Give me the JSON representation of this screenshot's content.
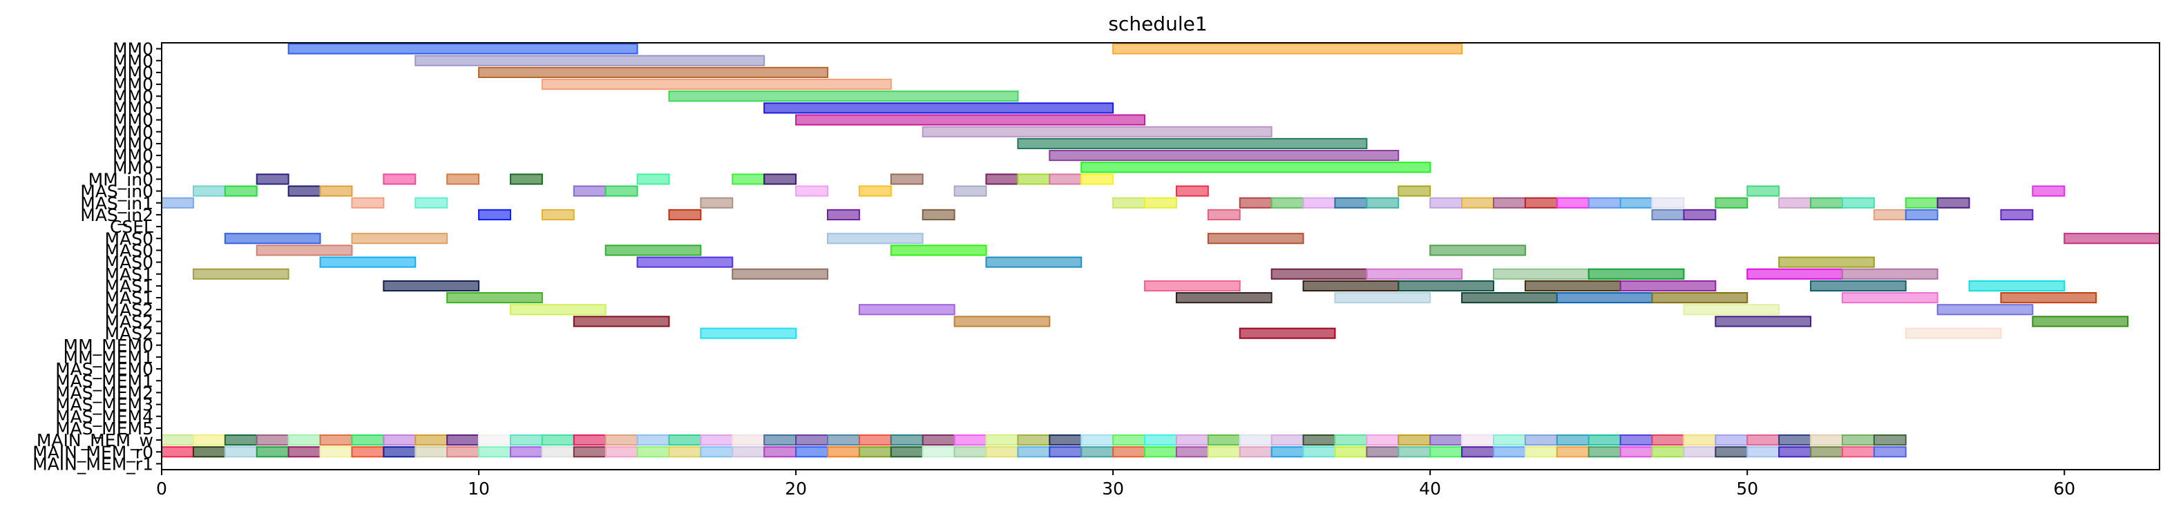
{
  "chart_data": {
    "type": "gantt",
    "title": "schedule1",
    "xlabel": "",
    "ylabel": "",
    "xlim": [
      0,
      63
    ],
    "x_ticks": [
      0,
      10,
      20,
      30,
      40,
      50,
      60
    ],
    "grid": false,
    "legend": "none",
    "rows": [
      "MM0",
      "MM0",
      "MM0",
      "MM0",
      "MM0",
      "MM0",
      "MM0",
      "MM0",
      "MM0",
      "MM0",
      "MM0",
      "MM_in0",
      "MAS_in0",
      "MAS_in1",
      "MAS_in2",
      "CSEL",
      "MAS0",
      "MAS0",
      "MAS0",
      "MAS1",
      "MAS1",
      "MAS1",
      "MAS2",
      "MAS2",
      "MAS2",
      "MM_MEM0",
      "MM_MEM1",
      "MAS_MEM0",
      "MAS_MEM1",
      "MAS_MEM2",
      "MAS_MEM3",
      "MAS_MEM4",
      "MAS_MEM5",
      "MAIN_MEM_w",
      "MAIN_MEM_r0",
      "MAIN_MEM_r1"
    ],
    "bars": [
      {
        "row": 0,
        "start": 4,
        "end": 15,
        "color": "#2d5fec"
      },
      {
        "row": 0,
        "start": 30,
        "end": 41,
        "color": "#fba830"
      },
      {
        "row": 1,
        "start": 8,
        "end": 19,
        "color": "#9a96c8"
      },
      {
        "row": 2,
        "start": 10,
        "end": 21,
        "color": "#b86630"
      },
      {
        "row": 3,
        "start": 12,
        "end": 23,
        "color": "#f2a078"
      },
      {
        "row": 4,
        "start": 16,
        "end": 27,
        "color": "#3fd45c"
      },
      {
        "row": 5,
        "start": 19,
        "end": 30,
        "color": "#1c1adf"
      },
      {
        "row": 6,
        "start": 20,
        "end": 31,
        "color": "#c41a9c"
      },
      {
        "row": 7,
        "start": 24,
        "end": 35,
        "color": "#b896c4"
      },
      {
        "row": 8,
        "start": 27,
        "end": 38,
        "color": "#1e7a58"
      },
      {
        "row": 9,
        "start": 28,
        "end": 39,
        "color": "#8a3c9c"
      },
      {
        "row": 10,
        "start": 29,
        "end": 40,
        "color": "#24f224"
      },
      {
        "row": 11,
        "start": 3,
        "end": 4,
        "color": "#2c2080"
      },
      {
        "row": 11,
        "start": 7,
        "end": 8,
        "color": "#f24a9c"
      },
      {
        "row": 11,
        "start": 9,
        "end": 10,
        "color": "#d47a40"
      },
      {
        "row": 11,
        "start": 11,
        "end": 12,
        "color": "#1a6a20"
      },
      {
        "row": 11,
        "start": 15,
        "end": 16,
        "color": "#40f2a0"
      },
      {
        "row": 11,
        "start": 18,
        "end": 19,
        "color": "#3ef03a"
      },
      {
        "row": 11,
        "start": 19,
        "end": 20,
        "color": "#3a1a6c"
      },
      {
        "row": 11,
        "start": 23,
        "end": 24,
        "color": "#9a6a58"
      },
      {
        "row": 11,
        "start": 26,
        "end": 27,
        "color": "#7a2060"
      },
      {
        "row": 11,
        "start": 27,
        "end": 28,
        "color": "#a4d830"
      },
      {
        "row": 11,
        "start": 28,
        "end": 29,
        "color": "#d878a0"
      },
      {
        "row": 11,
        "start": 29,
        "end": 30,
        "color": "#fcf020"
      },
      {
        "row": 12,
        "start": 1,
        "end": 2,
        "color": "#70d0d0"
      },
      {
        "row": 12,
        "start": 2,
        "end": 3,
        "color": "#2ad840"
      },
      {
        "row": 12,
        "start": 4,
        "end": 5,
        "color": "#241c70"
      },
      {
        "row": 12,
        "start": 5,
        "end": 6,
        "color": "#e0a038"
      },
      {
        "row": 12,
        "start": 13,
        "end": 14,
        "color": "#8a6ad0"
      },
      {
        "row": 12,
        "start": 14,
        "end": 15,
        "color": "#34d45c"
      },
      {
        "row": 12,
        "start": 20,
        "end": 21,
        "color": "#f0a0f0"
      },
      {
        "row": 12,
        "start": 22,
        "end": 23,
        "color": "#f8c020"
      },
      {
        "row": 12,
        "start": 25,
        "end": 26,
        "color": "#a8a8c8"
      },
      {
        "row": 12,
        "start": 32,
        "end": 33,
        "color": "#e8304c"
      },
      {
        "row": 12,
        "start": 39,
        "end": 40,
        "color": "#a8a820"
      },
      {
        "row": 12,
        "start": 50,
        "end": 51,
        "color": "#40d880"
      },
      {
        "row": 12,
        "start": 59,
        "end": 60,
        "color": "#e030e0"
      },
      {
        "row": 13,
        "start": 0,
        "end": 1,
        "color": "#7aa8e8"
      },
      {
        "row": 13,
        "start": 6,
        "end": 7,
        "color": "#f0a080"
      },
      {
        "row": 13,
        "start": 8,
        "end": 9,
        "color": "#60f0d0"
      },
      {
        "row": 13,
        "start": 17,
        "end": 18,
        "color": "#b09080"
      },
      {
        "row": 13,
        "start": 30,
        "end": 31,
        "color": "#c8e860"
      },
      {
        "row": 13,
        "start": 31,
        "end": 32,
        "color": "#e8f030"
      },
      {
        "row": 13,
        "start": 34,
        "end": 35,
        "color": "#b84040"
      },
      {
        "row": 13,
        "start": 35,
        "end": 36,
        "color": "#60c060"
      },
      {
        "row": 13,
        "start": 36,
        "end": 37,
        "color": "#e0a0f0"
      },
      {
        "row": 13,
        "start": 37,
        "end": 38,
        "color": "#2070a0"
      },
      {
        "row": 13,
        "start": 38,
        "end": 39,
        "color": "#40b0a0"
      },
      {
        "row": 13,
        "start": 40,
        "end": 41,
        "color": "#c0a0e0"
      },
      {
        "row": 13,
        "start": 41,
        "end": 42,
        "color": "#e0b040"
      },
      {
        "row": 13,
        "start": 42,
        "end": 43,
        "color": "#a05080"
      },
      {
        "row": 13,
        "start": 43,
        "end": 44,
        "color": "#c02020"
      },
      {
        "row": 13,
        "start": 44,
        "end": 45,
        "color": "#f030f0"
      },
      {
        "row": 13,
        "start": 45,
        "end": 46,
        "color": "#6090f0"
      },
      {
        "row": 13,
        "start": 46,
        "end": 47,
        "color": "#40a0e0"
      },
      {
        "row": 13,
        "start": 47,
        "end": 48,
        "color": "#e0e0f0"
      },
      {
        "row": 13,
        "start": 49,
        "end": 50,
        "color": "#30c040"
      },
      {
        "row": 13,
        "start": 51,
        "end": 52,
        "color": "#d0a0d0"
      },
      {
        "row": 13,
        "start": 52,
        "end": 53,
        "color": "#40c060"
      },
      {
        "row": 13,
        "start": 53,
        "end": 54,
        "color": "#40e0b0"
      },
      {
        "row": 13,
        "start": 55,
        "end": 56,
        "color": "#40e040"
      },
      {
        "row": 13,
        "start": 56,
        "end": 57,
        "color": "#502080"
      },
      {
        "row": 14,
        "start": 10,
        "end": 11,
        "color": "#1020f0"
      },
      {
        "row": 14,
        "start": 12,
        "end": 13,
        "color": "#e0b030"
      },
      {
        "row": 14,
        "start": 16,
        "end": 17,
        "color": "#c03010"
      },
      {
        "row": 14,
        "start": 21,
        "end": 22,
        "color": "#7020a0"
      },
      {
        "row": 14,
        "start": 24,
        "end": 25,
        "color": "#806040"
      },
      {
        "row": 14,
        "start": 33,
        "end": 34,
        "color": "#e06080"
      },
      {
        "row": 14,
        "start": 47,
        "end": 48,
        "color": "#6080c0"
      },
      {
        "row": 14,
        "start": 48,
        "end": 49,
        "color": "#6020a0"
      },
      {
        "row": 14,
        "start": 54,
        "end": 55,
        "color": "#e0a080"
      },
      {
        "row": 14,
        "start": 55,
        "end": 56,
        "color": "#4070e0"
      },
      {
        "row": 14,
        "start": 58,
        "end": 59,
        "color": "#6020c0"
      },
      {
        "row": 16,
        "start": 2,
        "end": 5,
        "color": "#3060e0"
      },
      {
        "row": 16,
        "start": 6,
        "end": 9,
        "color": "#e0a060"
      },
      {
        "row": 16,
        "start": 21,
        "end": 24,
        "color": "#a0c0e0"
      },
      {
        "row": 16,
        "start": 33,
        "end": 36,
        "color": "#b05030"
      },
      {
        "row": 16,
        "start": 60,
        "end": 63,
        "color": "#c03080"
      },
      {
        "row": 17,
        "start": 3,
        "end": 6,
        "color": "#d08070"
      },
      {
        "row": 17,
        "start": 14,
        "end": 17,
        "color": "#30b030"
      },
      {
        "row": 17,
        "start": 23,
        "end": 26,
        "color": "#30f010"
      },
      {
        "row": 17,
        "start": 40,
        "end": 43,
        "color": "#50a050"
      },
      {
        "row": 18,
        "start": 5,
        "end": 8,
        "color": "#10b0f0"
      },
      {
        "row": 18,
        "start": 15,
        "end": 18,
        "color": "#5030e0"
      },
      {
        "row": 18,
        "start": 26,
        "end": 29,
        "color": "#2090c0"
      },
      {
        "row": 18,
        "start": 51,
        "end": 54,
        "color": "#a0a020"
      },
      {
        "row": 19,
        "start": 1,
        "end": 4,
        "color": "#a0a040"
      },
      {
        "row": 19,
        "start": 18,
        "end": 21,
        "color": "#907060"
      },
      {
        "row": 19,
        "start": 35,
        "end": 38,
        "color": "#702040"
      },
      {
        "row": 19,
        "start": 38,
        "end": 41,
        "color": "#d070d0"
      },
      {
        "row": 19,
        "start": 42,
        "end": 45,
        "color": "#90c090"
      },
      {
        "row": 19,
        "start": 45,
        "end": 48,
        "color": "#10a030"
      },
      {
        "row": 19,
        "start": 50,
        "end": 53,
        "color": "#e010e0"
      },
      {
        "row": 19,
        "start": 53,
        "end": 56,
        "color": "#b070a0"
      },
      {
        "row": 20,
        "start": 7,
        "end": 10,
        "color": "#102050"
      },
      {
        "row": 20,
        "start": 31,
        "end": 34,
        "color": "#f06090"
      },
      {
        "row": 20,
        "start": 36,
        "end": 39,
        "color": "#302010"
      },
      {
        "row": 20,
        "start": 39,
        "end": 42,
        "color": "#105040"
      },
      {
        "row": 20,
        "start": 43,
        "end": 46,
        "color": "#403010"
      },
      {
        "row": 20,
        "start": 46,
        "end": 49,
        "color": "#9020a0"
      },
      {
        "row": 20,
        "start": 52,
        "end": 55,
        "color": "#106070"
      },
      {
        "row": 20,
        "start": 57,
        "end": 60,
        "color": "#10e0e0"
      },
      {
        "row": 21,
        "start": 9,
        "end": 12,
        "color": "#40b020"
      },
      {
        "row": 21,
        "start": 32,
        "end": 35,
        "color": "#302020"
      },
      {
        "row": 21,
        "start": 37,
        "end": 40,
        "color": "#b0d0e0"
      },
      {
        "row": 21,
        "start": 41,
        "end": 44,
        "color": "#104030"
      },
      {
        "row": 21,
        "start": 44,
        "end": 47,
        "color": "#1060b0"
      },
      {
        "row": 21,
        "start": 47,
        "end": 50,
        "color": "#807010"
      },
      {
        "row": 21,
        "start": 53,
        "end": 56,
        "color": "#f070d0"
      },
      {
        "row": 21,
        "start": 58,
        "end": 61,
        "color": "#c04010"
      },
      {
        "row": 22,
        "start": 11,
        "end": 14,
        "color": "#d0f060"
      },
      {
        "row": 22,
        "start": 22,
        "end": 25,
        "color": "#a060e0"
      },
      {
        "row": 22,
        "start": 48,
        "end": 51,
        "color": "#e0f0a0"
      },
      {
        "row": 22,
        "start": 56,
        "end": 59,
        "color": "#7070e0"
      },
      {
        "row": 23,
        "start": 13,
        "end": 16,
        "color": "#801020"
      },
      {
        "row": 23,
        "start": 25,
        "end": 28,
        "color": "#c08030"
      },
      {
        "row": 23,
        "start": 49,
        "end": 52,
        "color": "#402080"
      },
      {
        "row": 23,
        "start": 59,
        "end": 62,
        "color": "#309010"
      },
      {
        "row": 24,
        "start": 17,
        "end": 20,
        "color": "#20e0f0"
      },
      {
        "row": 24,
        "start": 34,
        "end": 37,
        "color": "#a00020"
      },
      {
        "row": 24,
        "start": 55,
        "end": 58,
        "color": "#f8e0d0"
      }
    ],
    "memory_rows": [
      {
        "row": 33,
        "colors": [
          "#c8e890",
          "#f0f080",
          "#1a6a40",
          "#a06080",
          "#a0f0b0",
          "#e07040",
          "#30e060",
          "#c080e0",
          "#d0a030",
          "#602080",
          "#f0f0f0",
          "#60e0c0",
          "#40e0a0",
          "#e02060",
          "#e0a080",
          "#90c0f0",
          "#30d090",
          "#e0a0f0",
          "#f0e0e0",
          "#4070a0",
          "#6040a0",
          "#5080a0",
          "#f05040",
          "#308080",
          "#803060",
          "#f060f0",
          "#d0f080",
          "#a0b040",
          "#203060",
          "#a0e0f0",
          "#60f060",
          "#40f0e0",
          "#d0a0e0",
          "#60c040",
          "#e0e0f0",
          "#d0b0e0",
          "#305030",
          "#60e0a0",
          "#f0a0e0",
          "#c0a020",
          "#8060c0",
          "#f0e0f0",
          "#80f0d0",
          "#80a0e0",
          "#30a0c0",
          "#20c0a0",
          "#5040e0",
          "#e04060",
          "#f0e080",
          "#a0a0f0",
          "#e06090",
          "#304080",
          "#e0d0b0",
          "#70b060",
          "#406040"
        ]
      },
      {
        "row": 34,
        "colors": [
          "#f02050",
          "#204010",
          "#a0d0e0",
          "#20a040",
          "#902060",
          "#f0f0a0",
          "#f05030",
          "#1020a0",
          "#d0d0b0",
          "#e08080",
          "#80f0c0",
          "#a060e0",
          "#e0e0e0",
          "#803040",
          "#f0a0c0",
          "#90f070",
          "#e0d060",
          "#80c0f0",
          "#d0c0e0",
          "#b040c0",
          "#3060f0",
          "#f08020",
          "#80a020",
          "#206030",
          "#c0f0d0",
          "#a0d0a0",
          "#e0e070",
          "#60b0e0",
          "#3040d0",
          "#40a0a0",
          "#e06030",
          "#40f040",
          "#a050a0",
          "#d0f070",
          "#e0a0c0",
          "#20a0e0",
          "#60e0d0",
          "#c0f040",
          "#806080",
          "#60c0a0",
          "#40f060",
          "#5020a0",
          "#60a0f0",
          "#e0f080",
          "#f0a040",
          "#40a060",
          "#e050e0",
          "#a0e040",
          "#d0c0e0",
          "#304060",
          "#a0c0f0",
          "#4020c0",
          "#708040",
          "#f05080",
          "#5060e0"
        ]
      }
    ]
  }
}
